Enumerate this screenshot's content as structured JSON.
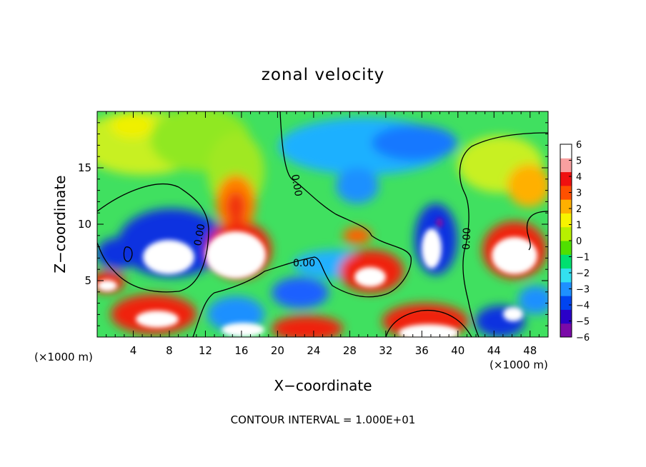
{
  "chart_data": {
    "type": "heatmap",
    "title": "zonal velocity",
    "xlabel": "X−coordinate",
    "ylabel": "Z−coordinate",
    "x_unit_left": "(×1000 m)",
    "x_unit_right": "(×1000 m)",
    "footer": "CONTOUR INTERVAL = 1.000E+01",
    "xlim": [
      0,
      50
    ],
    "ylim": [
      0,
      20
    ],
    "x_ticks": [
      4,
      8,
      12,
      16,
      20,
      24,
      28,
      32,
      36,
      40,
      44,
      48
    ],
    "y_ticks": [
      5,
      10,
      15
    ],
    "colorbar": {
      "min": -6,
      "max": 6,
      "ticks": [
        6,
        5,
        4,
        3,
        2,
        1,
        0,
        -1,
        -2,
        -3,
        -4,
        -5,
        -6
      ],
      "tick_labels": [
        "6",
        "5",
        "4",
        "3",
        "2",
        "1",
        "0",
        "−1",
        "−2",
        "−3",
        "−4",
        "−5",
        "−6"
      ],
      "colors": [
        "#7a0aa8",
        "#2a00c8",
        "#0044f0",
        "#1e90ff",
        "#33e0f0",
        "#00e070",
        "#50e000",
        "#b8f000",
        "#f8f400",
        "#ffb000",
        "#ff5000",
        "#f01010",
        "#f8a0a0",
        "#ffffff"
      ]
    },
    "zero_contour_labels": [
      "0.00",
      "0.00",
      "0.00",
      "0.00",
      "0.00"
    ]
  }
}
